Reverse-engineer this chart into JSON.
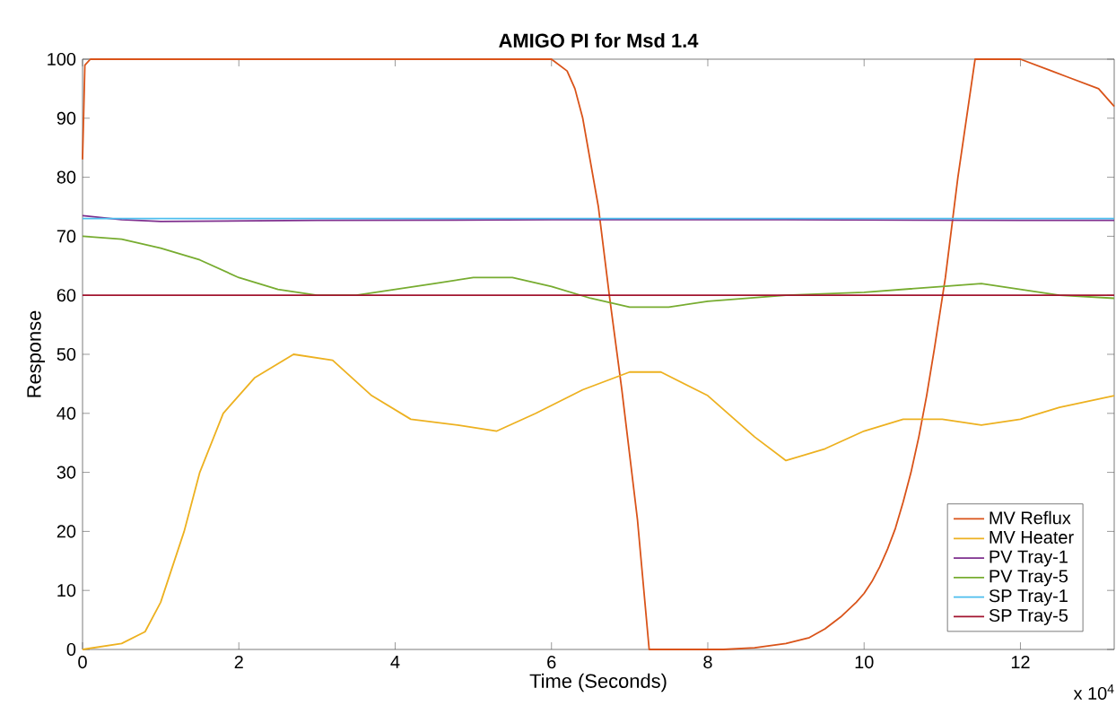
{
  "chart_data": {
    "type": "line",
    "title": "AMIGO PI for Msd 1.4",
    "xlabel": "Time (Seconds)",
    "ylabel": "Response",
    "xlim": [
      0,
      13.2
    ],
    "ylim": [
      0,
      100
    ],
    "xticks": [
      0,
      2,
      4,
      6,
      8,
      10,
      12
    ],
    "yticks": [
      0,
      10,
      20,
      30,
      40,
      50,
      60,
      70,
      80,
      90,
      100
    ],
    "annotations": [
      "x 10$^{4}$"
    ],
    "legend": "bottom right",
    "grid": false,
    "series": [
      {
        "name": "MV Reflux",
        "color": "#d95319",
        "x": [
          0,
          0.03,
          0.1,
          3,
          6,
          6.2,
          6.3,
          6.4,
          6.6,
          6.74,
          6.9,
          7.1,
          7.25,
          7.6,
          8.2,
          8.6,
          9,
          9.3,
          9.5,
          9.7,
          9.9,
          10,
          10.1,
          10.2,
          10.3,
          10.4,
          10.5,
          10.6,
          10.7,
          10.8,
          10.9,
          11.04,
          11.2,
          11.42,
          12,
          12.2,
          12.4,
          12.6,
          12.8,
          13,
          13.2
        ],
        "values": [
          83,
          99,
          100,
          100,
          100,
          98,
          95,
          90,
          75,
          60,
          44,
          22,
          0,
          0,
          0,
          0.3,
          1,
          2,
          3.5,
          5.5,
          8,
          9.5,
          11.5,
          14,
          17,
          20.5,
          25,
          30,
          36,
          43,
          51,
          63,
          80,
          100,
          100,
          99,
          98,
          97,
          96,
          95,
          92
        ]
      },
      {
        "name": "MV Heater",
        "color": "#edb120",
        "x": [
          0,
          0.5,
          0.8,
          1,
          1.3,
          1.5,
          1.8,
          2.2,
          2.7,
          3.2,
          3.7,
          4.2,
          4.8,
          5.3,
          5.8,
          6.4,
          7,
          7.4,
          8,
          8.6,
          9,
          9.5,
          10,
          10.5,
          11,
          11.5,
          12,
          12.5,
          13.2
        ],
        "values": [
          0,
          1,
          3,
          8,
          20,
          30,
          40,
          46,
          50,
          49,
          43,
          39,
          38,
          37,
          40,
          44,
          47,
          47,
          43,
          36,
          32,
          34,
          37,
          39,
          39,
          38,
          39,
          41,
          43
        ]
      },
      {
        "name": "PV Tray-1",
        "color": "#7e2f8e",
        "x": [
          0,
          0.5,
          1,
          3,
          6,
          9,
          12,
          13.2
        ],
        "values": [
          73.5,
          72.8,
          72.5,
          72.7,
          72.8,
          72.8,
          72.7,
          72.7
        ]
      },
      {
        "name": "PV Tray-5",
        "color": "#77ac30",
        "x": [
          0,
          0.5,
          1,
          1.5,
          2,
          2.5,
          3,
          3.5,
          4,
          4.5,
          5,
          5.5,
          6,
          6.5,
          7,
          7.5,
          8,
          9,
          10,
          11,
          11.5,
          12,
          12.5,
          13.2
        ],
        "values": [
          70,
          69.5,
          68,
          66,
          63,
          61,
          60,
          60,
          61,
          62,
          63,
          63,
          61.5,
          59.5,
          58,
          58,
          59,
          60,
          60.5,
          61.5,
          62,
          61,
          60,
          59.5
        ]
      },
      {
        "name": "SP Tray-1",
        "color": "#4dbeee",
        "x": [
          0,
          13.2
        ],
        "values": [
          73,
          73
        ]
      },
      {
        "name": "SP Tray-5",
        "color": "#a2142f",
        "x": [
          0,
          13.2
        ],
        "values": [
          60,
          60
        ]
      }
    ]
  }
}
